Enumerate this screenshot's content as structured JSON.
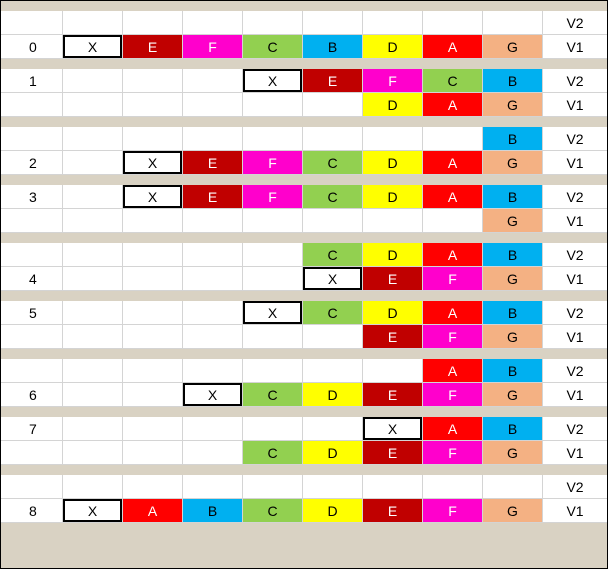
{
  "colors": {
    "X": "#ffffff",
    "A": "#ff0000",
    "B": "#00b0f0",
    "C": "#92d050",
    "D": "#ffff00",
    "E": "#c00000",
    "F": "#ff00cc",
    "G": "#f4b183"
  },
  "text_colors": {
    "X": "#000000",
    "A": "#ffffff",
    "B": "#000000",
    "C": "#000000",
    "D": "#000000",
    "E": "#ffffff",
    "F": "#ffffff",
    "G": "#000000"
  },
  "version_labels": {
    "v2": "V2",
    "v1": "V1"
  },
  "steps": [
    {
      "label": "0",
      "label_row": "v1",
      "v2": [
        "",
        "",
        "",
        "",
        "",
        "",
        "",
        ""
      ],
      "v1": [
        "X",
        "E",
        "F",
        "C",
        "B",
        "D",
        "A",
        "G"
      ]
    },
    {
      "label": "1",
      "label_row": "v2",
      "v2": [
        "",
        "",
        "",
        "X",
        "E",
        "F",
        "C",
        "B"
      ],
      "v1": [
        "",
        "",
        "",
        "",
        "",
        "D",
        "A",
        "G"
      ]
    },
    {
      "label": "2",
      "label_row": "v1",
      "v2": [
        "",
        "",
        "",
        "",
        "",
        "",
        "",
        "B"
      ],
      "v1": [
        "",
        "X",
        "E",
        "F",
        "C",
        "D",
        "A",
        "G"
      ]
    },
    {
      "label": "3",
      "label_row": "v2",
      "v2": [
        "",
        "X",
        "E",
        "F",
        "C",
        "D",
        "A",
        "B"
      ],
      "v1": [
        "",
        "",
        "",
        "",
        "",
        "",
        "",
        "G"
      ]
    },
    {
      "label": "4",
      "label_row": "v1",
      "v2": [
        "",
        "",
        "",
        "",
        "C",
        "D",
        "A",
        "B"
      ],
      "v1": [
        "",
        "",
        "",
        "",
        "X",
        "E",
        "F",
        "G"
      ]
    },
    {
      "label": "5",
      "label_row": "v2",
      "v2": [
        "",
        "",
        "",
        "X",
        "C",
        "D",
        "A",
        "B"
      ],
      "v1": [
        "",
        "",
        "",
        "",
        "",
        "E",
        "F",
        "G"
      ]
    },
    {
      "label": "6",
      "label_row": "v1",
      "v2": [
        "",
        "",
        "",
        "",
        "",
        "",
        "A",
        "B"
      ],
      "v1": [
        "",
        "",
        "X",
        "C",
        "D",
        "E",
        "F",
        "G"
      ]
    },
    {
      "label": "7",
      "label_row": "v2",
      "v2": [
        "",
        "",
        "",
        "",
        "",
        "X",
        "A",
        "B"
      ],
      "v1": [
        "",
        "",
        "",
        "C",
        "D",
        "E",
        "F",
        "G"
      ]
    },
    {
      "label": "8",
      "label_row": "v1",
      "v2": [
        "",
        "",
        "",
        "",
        "",
        "",
        "",
        ""
      ],
      "v1": [
        "X",
        "A",
        "B",
        "C",
        "D",
        "E",
        "F",
        "G"
      ]
    }
  ]
}
